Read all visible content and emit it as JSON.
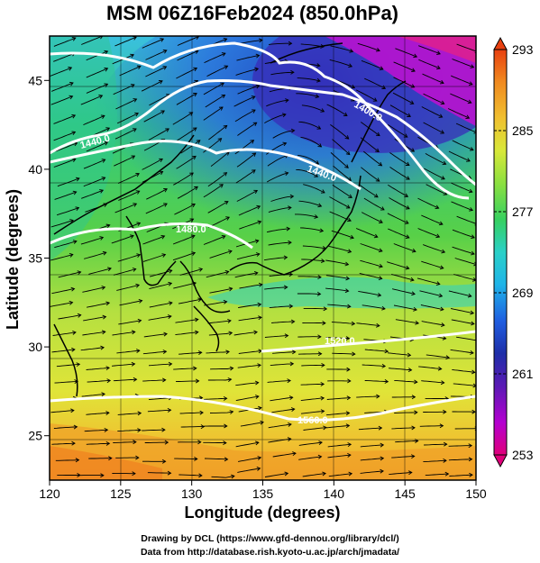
{
  "title": "MSM 06Z16Feb2024 (850.0hPa)",
  "x_axis": {
    "title": "Longitude (degrees)",
    "ticks": [
      "120",
      "125",
      "130",
      "135",
      "140",
      "145",
      "150"
    ],
    "range": [
      120,
      150
    ]
  },
  "y_axis": {
    "title": "Latitude  (degrees)",
    "ticks": [
      "25",
      "30",
      "35",
      "40",
      "45"
    ],
    "range": [
      22.5,
      47.5
    ]
  },
  "colorbar": {
    "labels": [
      "293",
      "285",
      "277",
      "269",
      "261",
      "253"
    ],
    "range": [
      253,
      293
    ],
    "colors": [
      "#e0007a",
      "#b400d0",
      "#5a1ab4",
      "#1e2ea8",
      "#1f5ee0",
      "#1fb4e8",
      "#2ad0c8",
      "#36d060",
      "#8ce040",
      "#d8e83a",
      "#f0c030",
      "#f08a20",
      "#e84010"
    ]
  },
  "contours": [
    {
      "label": "1440.0"
    },
    {
      "label": "1400.0"
    },
    {
      "label": "1440.0"
    },
    {
      "label": "1480.0"
    },
    {
      "label": "1520.0"
    },
    {
      "label": "1560.0"
    }
  ],
  "credits": {
    "line1": "Drawing by DCL (https://www.gfd-dennou.org/library/dcl/)",
    "line2": "Data from http://database.rish.kyoto-u.ac.jp/arch/jmadata/"
  }
}
